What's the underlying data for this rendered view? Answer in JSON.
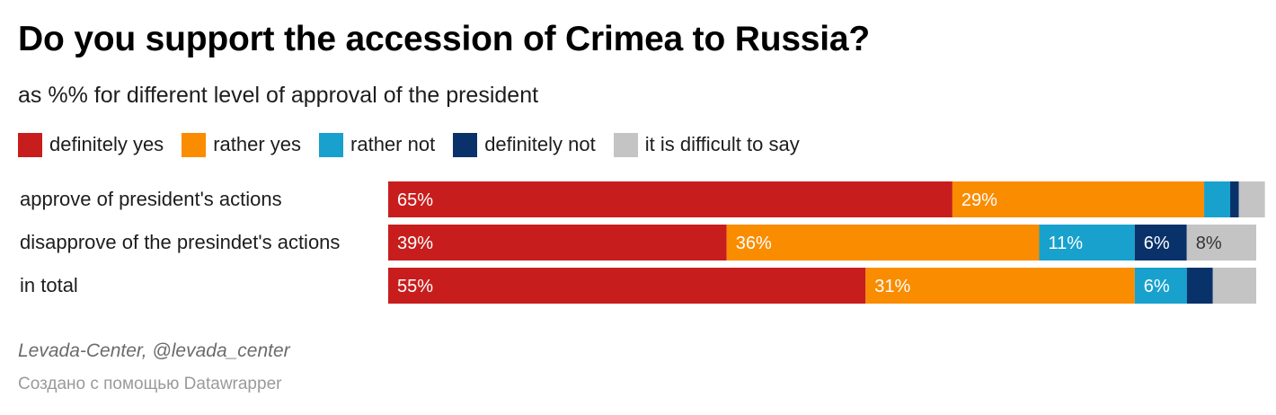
{
  "title": "Do you support the accession of Crimea to Russia?",
  "subtitle": "as %% for different level of approval of the president",
  "legend": [
    {
      "label": "definitely yes",
      "color": "#c71e1d"
    },
    {
      "label": "rather yes",
      "color": "#fa8c00"
    },
    {
      "label": "rather not",
      "color": "#18a1cd"
    },
    {
      "label": "definitely not",
      "color": "#09326a"
    },
    {
      "label": "it is difficult to say",
      "color": "#c4c4c4"
    }
  ],
  "chart_data": {
    "type": "bar",
    "orientation": "horizontal",
    "stacked": true,
    "title": "Do you support the accession of Crimea to Russia?",
    "subtitle": "as %% for different level of approval of the president",
    "xlim": [
      0,
      100
    ],
    "unit": "%",
    "legend_position": "top-left",
    "categories": [
      "approve of president's actions",
      "disapprove of the presindet's actions",
      "in total"
    ],
    "series": [
      {
        "name": "definitely yes",
        "color": "#c71e1d",
        "values": [
          65,
          39,
          55
        ],
        "labels": [
          "65%",
          "39%",
          "55%"
        ]
      },
      {
        "name": "rather yes",
        "color": "#fa8c00",
        "values": [
          29,
          36,
          31
        ],
        "labels": [
          "29%",
          "36%",
          "31%"
        ]
      },
      {
        "name": "rather not",
        "color": "#18a1cd",
        "values": [
          3,
          11,
          6
        ],
        "labels": [
          "",
          "11%",
          "6%"
        ]
      },
      {
        "name": "definitely not",
        "color": "#09326a",
        "values": [
          1,
          6,
          3
        ],
        "labels": [
          "",
          "6%",
          ""
        ]
      },
      {
        "name": "it is difficult to say",
        "color": "#c4c4c4",
        "values": [
          3,
          8,
          5
        ],
        "labels": [
          "",
          "8%",
          ""
        ]
      }
    ]
  },
  "source": "Levada-Center, @levada_center",
  "credit": "Создано с помощью Datawrapper"
}
